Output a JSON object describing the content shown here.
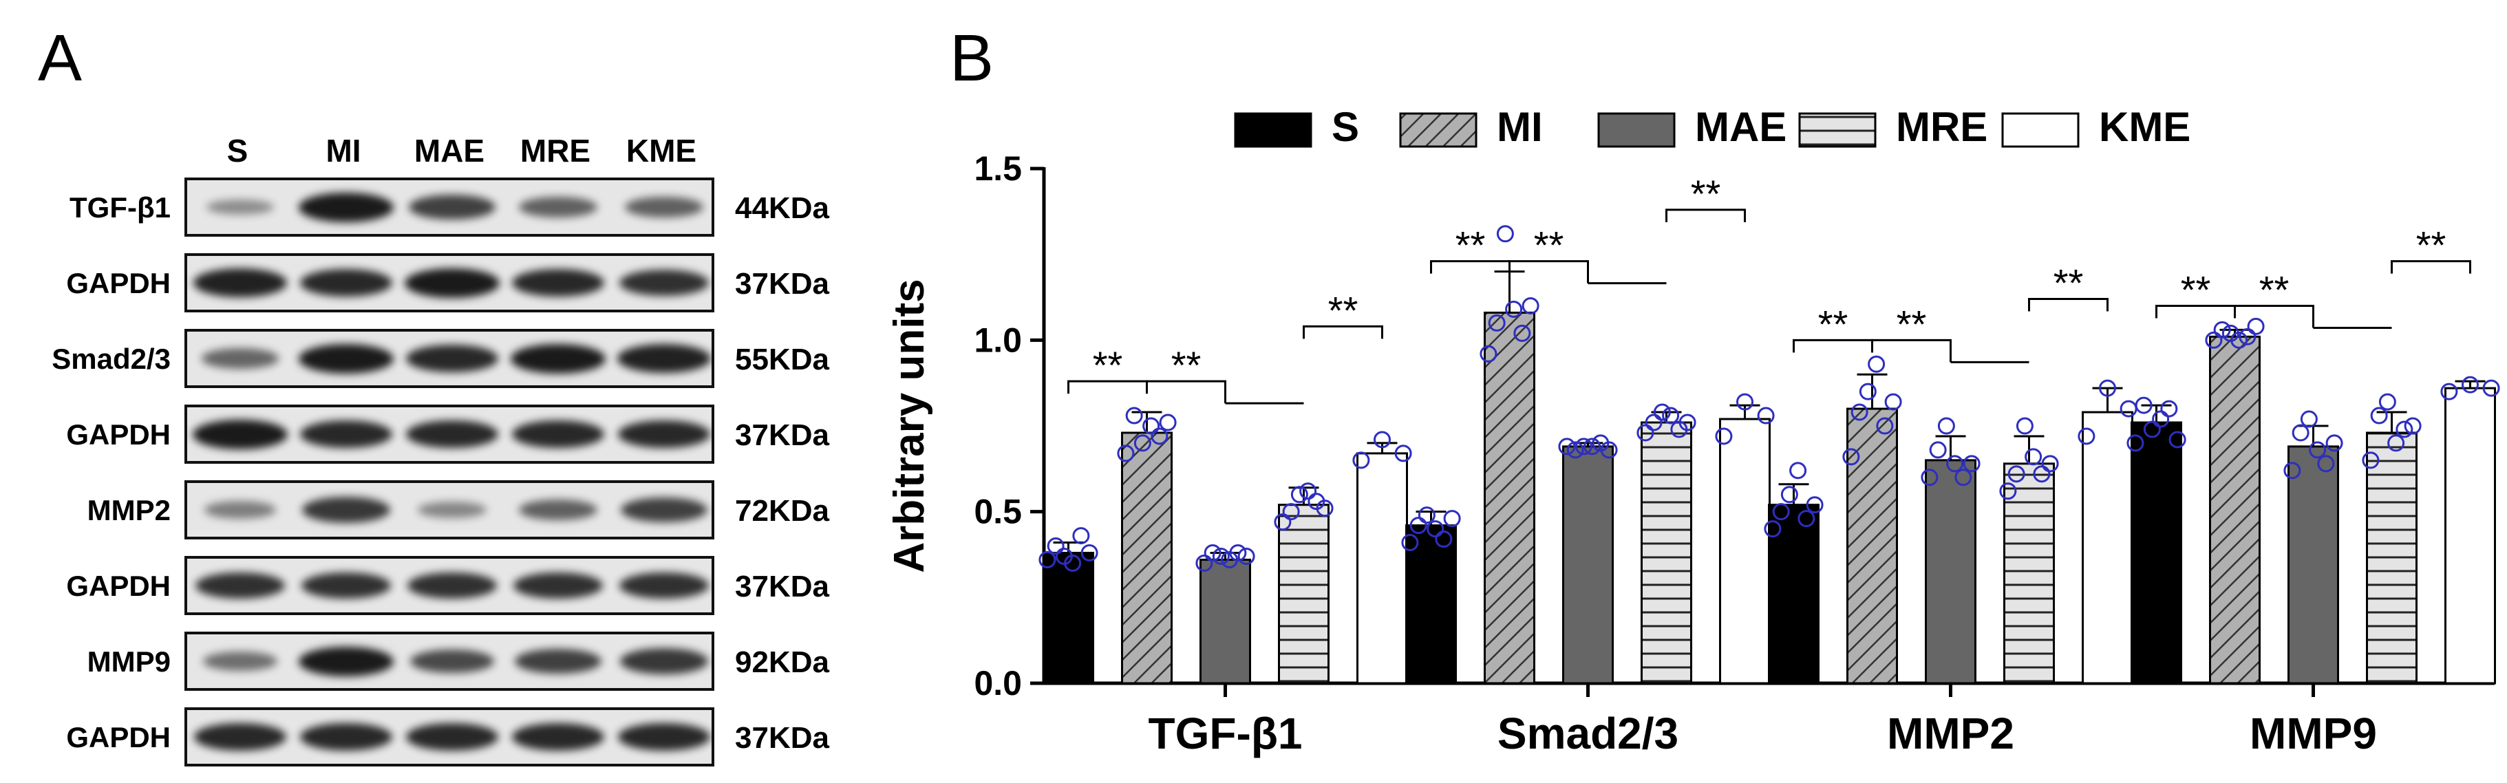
{
  "panel_a": {
    "letter": "A",
    "lanes": [
      "S",
      "MI",
      "MAE",
      "MRE",
      "KME"
    ],
    "rows": [
      {
        "label": "TGF-β1",
        "size": "44KDa",
        "intensity": [
          0.25,
          1.0,
          0.75,
          0.55,
          0.55
        ]
      },
      {
        "label": "GAPDH",
        "size": "37KDa",
        "intensity": [
          0.95,
          0.9,
          1.0,
          0.9,
          0.85
        ]
      },
      {
        "label": "Smad2/3",
        "size": "55KDa",
        "intensity": [
          0.5,
          1.0,
          0.9,
          1.0,
          0.95
        ]
      },
      {
        "label": "GAPDH",
        "size": "37KDa",
        "intensity": [
          1.0,
          0.9,
          0.9,
          0.9,
          0.9
        ]
      },
      {
        "label": "MMP2",
        "size": "72KDa",
        "intensity": [
          0.35,
          0.8,
          0.3,
          0.55,
          0.75
        ]
      },
      {
        "label": "GAPDH",
        "size": "37KDa",
        "intensity": [
          0.85,
          0.85,
          0.85,
          0.85,
          0.85
        ]
      },
      {
        "label": "MMP9",
        "size": "92KDa",
        "intensity": [
          0.45,
          1.0,
          0.7,
          0.75,
          0.8
        ]
      },
      {
        "label": "GAPDH",
        "size": "37KDa",
        "intensity": [
          0.9,
          0.9,
          0.9,
          0.9,
          0.9
        ]
      }
    ]
  },
  "panel_b": {
    "letter": "B"
  },
  "chart_data": {
    "type": "bar",
    "ylabel": "Arbitrary units",
    "ylim": [
      0,
      1.5
    ],
    "yticks": [
      "0.0",
      "0.5",
      "1.0",
      "1.5"
    ],
    "categories": [
      "TGF-β1",
      "Smad2/3",
      "MMP2",
      "MMP9"
    ],
    "legend_position": "top",
    "series": [
      {
        "name": "S",
        "fill": "#000000",
        "pattern": "solid",
        "values": [
          0.38,
          0.46,
          0.52,
          0.76
        ],
        "errors": [
          0.03,
          0.04,
          0.06,
          0.05
        ]
      },
      {
        "name": "MI",
        "fill": "#a6a6a6",
        "pattern": "diagonal",
        "values": [
          0.73,
          1.08,
          0.8,
          1.01
        ],
        "errors": [
          0.06,
          0.12,
          0.1,
          0.02
        ]
      },
      {
        "name": "MAE",
        "fill": "#666666",
        "pattern": "solid",
        "values": [
          0.36,
          0.69,
          0.65,
          0.69
        ],
        "errors": [
          0.02,
          0.01,
          0.07,
          0.06
        ]
      },
      {
        "name": "MRE",
        "fill": "#e0e0e0",
        "pattern": "horizontal",
        "values": [
          0.52,
          0.76,
          0.64,
          0.73
        ],
        "errors": [
          0.05,
          0.03,
          0.08,
          0.06
        ]
      },
      {
        "name": "KME",
        "fill": "#ffffff",
        "pattern": "solid",
        "values": [
          0.67,
          0.77,
          0.79,
          0.86
        ],
        "errors": [
          0.03,
          0.04,
          0.07,
          0.02
        ]
      }
    ],
    "points": [
      [
        [
          0.36,
          0.4,
          0.37,
          0.35,
          0.43,
          0.38
        ],
        [
          0.67,
          0.78,
          0.7,
          0.75,
          0.72,
          0.76
        ],
        [
          0.35,
          0.38,
          0.37,
          0.36,
          0.38,
          0.37
        ],
        [
          0.47,
          0.5,
          0.55,
          0.56,
          0.53,
          0.51
        ],
        [
          0.65,
          0.71,
          0.67
        ]
      ],
      [
        [
          0.41,
          0.46,
          0.49,
          0.45,
          0.42,
          0.48
        ],
        [
          0.96,
          1.05,
          1.31,
          1.09,
          1.02,
          1.1
        ],
        [
          0.69,
          0.68,
          0.69,
          0.69,
          0.7,
          0.68
        ],
        [
          0.73,
          0.76,
          0.79,
          0.78,
          0.74,
          0.76
        ],
        [
          0.72,
          0.82,
          0.78
        ]
      ],
      [
        [
          0.45,
          0.5,
          0.55,
          0.62,
          0.48,
          0.52
        ],
        [
          0.66,
          0.79,
          0.85,
          0.93,
          0.75,
          0.82
        ],
        [
          0.6,
          0.68,
          0.75,
          0.64,
          0.6,
          0.64
        ],
        [
          0.56,
          0.61,
          0.75,
          0.66,
          0.61,
          0.64
        ],
        [
          0.72,
          0.86,
          0.8
        ]
      ],
      [
        [
          0.7,
          0.81,
          0.74,
          0.77,
          0.8,
          0.71
        ],
        [
          1.0,
          1.03,
          1.02,
          1.0,
          1.01,
          1.04
        ],
        [
          0.62,
          0.73,
          0.77,
          0.68,
          0.64,
          0.7
        ],
        [
          0.65,
          0.78,
          0.82,
          0.7,
          0.74,
          0.75
        ],
        [
          0.85,
          0.87,
          0.86
        ]
      ]
    ],
    "significance": [
      [
        {
          "from": 0,
          "to": 1,
          "label": "**",
          "y": 0.88
        },
        {
          "from": 1,
          "to": [
            2,
            3
          ],
          "label": "**",
          "y": 0.88
        },
        {
          "from": 3,
          "to": 4,
          "label": "**",
          "y": 1.04
        }
      ],
      [
        {
          "from": 0,
          "to": 1,
          "label": "**",
          "y": 1.23
        },
        {
          "from": 1,
          "to": [
            2,
            3
          ],
          "label": "**",
          "y": 1.23
        },
        {
          "from": 3,
          "to": 4,
          "label": "**",
          "y": 1.38
        }
      ],
      [
        {
          "from": 0,
          "to": 1,
          "label": "**",
          "y": 1.0
        },
        {
          "from": 1,
          "to": [
            2,
            3
          ],
          "label": "**",
          "y": 1.0
        },
        {
          "from": 3,
          "to": 4,
          "label": "**",
          "y": 1.12
        }
      ],
      [
        {
          "from": 0,
          "to": 1,
          "label": "**",
          "y": 1.1
        },
        {
          "from": 1,
          "to": [
            2,
            3
          ],
          "label": "**",
          "y": 1.1
        },
        {
          "from": 3,
          "to": 4,
          "label": "**",
          "y": 1.23
        }
      ]
    ],
    "point_color": "#2e2ebf"
  }
}
